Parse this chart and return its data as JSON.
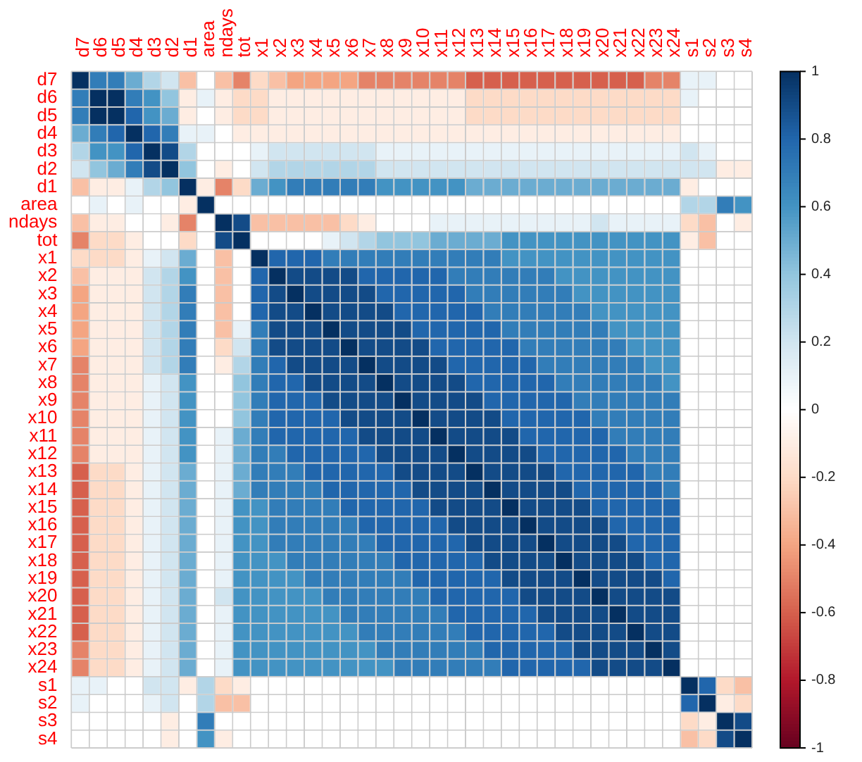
{
  "chart_data": {
    "type": "heatmap",
    "categories": [
      "d7",
      "d6",
      "d5",
      "d4",
      "d3",
      "d2",
      "d1",
      "area",
      "ndays",
      "tot",
      "x1",
      "x2",
      "x3",
      "x4",
      "x5",
      "x6",
      "x7",
      "x8",
      "x9",
      "x10",
      "x11",
      "x12",
      "x13",
      "x14",
      "x15",
      "x16",
      "x17",
      "x18",
      "x19",
      "x20",
      "x21",
      "x22",
      "x23",
      "x24",
      "s1",
      "s2",
      "s3",
      "s4"
    ],
    "y_categories": [
      "d7",
      "d6",
      "d5",
      "d4",
      "d3",
      "d2",
      "d1",
      "area",
      "ndays",
      "tot",
      "x1",
      "x2",
      "x3",
      "x4",
      "x5",
      "x6",
      "x7",
      "x8",
      "x9",
      "x10",
      "x11",
      "x12",
      "x13",
      "x14",
      "x15",
      "x16",
      "x17",
      "x18",
      "x19",
      "x20",
      "x21",
      "x22",
      "x23",
      "x24",
      "s1",
      "s2",
      "s3",
      "s4"
    ],
    "grid": true,
    "clim": [
      -1,
      1
    ],
    "cticks": [
      -1,
      -0.8,
      -0.6,
      -0.4,
      -0.2,
      0,
      0.2,
      0.4,
      0.6,
      0.8,
      1
    ],
    "cells": [
      [
        1,
        0.7,
        0.7,
        0.5,
        0.3,
        0.2,
        -0.3,
        0,
        -0.3,
        -0.5,
        -0.2,
        -0.3,
        -0.4,
        -0.4,
        -0.4,
        -0.4,
        -0.5,
        -0.5,
        -0.5,
        -0.5,
        -0.5,
        -0.5,
        -0.6,
        -0.6,
        -0.6,
        -0.6,
        -0.6,
        -0.6,
        -0.6,
        -0.6,
        -0.6,
        -0.6,
        -0.5,
        -0.5,
        0.1,
        0.1,
        0,
        0
      ],
      [
        0.7,
        1,
        1,
        0.7,
        0.6,
        0.4,
        -0.1,
        0.1,
        -0.1,
        -0.2,
        -0.2,
        -0.1,
        -0.1,
        -0.1,
        -0.1,
        -0.1,
        -0.1,
        -0.1,
        -0.1,
        -0.1,
        -0.1,
        -0.1,
        -0.2,
        -0.2,
        -0.2,
        -0.2,
        -0.2,
        -0.2,
        -0.2,
        -0.2,
        -0.2,
        -0.2,
        -0.2,
        -0.2,
        0.1,
        0,
        0,
        0
      ],
      [
        0.7,
        1,
        1,
        0.8,
        0.6,
        0.5,
        -0.1,
        0,
        -0.1,
        -0.2,
        -0.2,
        -0.1,
        -0.1,
        -0.1,
        -0.1,
        -0.1,
        -0.1,
        -0.1,
        -0.1,
        -0.1,
        -0.1,
        -0.1,
        -0.2,
        -0.2,
        -0.2,
        -0.2,
        -0.2,
        -0.2,
        -0.2,
        -0.2,
        -0.2,
        -0.2,
        -0.2,
        -0.2,
        0,
        0,
        0,
        0
      ],
      [
        0.5,
        0.7,
        0.8,
        1,
        0.8,
        0.7,
        0.1,
        0.1,
        0,
        -0.1,
        -0.1,
        -0.1,
        -0.1,
        -0.1,
        -0.1,
        -0.1,
        -0.1,
        -0.1,
        -0.1,
        -0.1,
        -0.1,
        -0.1,
        -0.1,
        -0.1,
        -0.1,
        -0.1,
        -0.1,
        -0.1,
        -0.1,
        -0.1,
        -0.1,
        -0.1,
        -0.1,
        -0.1,
        0,
        0,
        0,
        0
      ],
      [
        0.3,
        0.6,
        0.6,
        0.8,
        1,
        0.9,
        0.3,
        0,
        0,
        0,
        0.1,
        0.2,
        0.2,
        0.2,
        0.2,
        0.2,
        0.2,
        0.1,
        0.1,
        0.1,
        0.1,
        0.1,
        0.1,
        0.1,
        0.1,
        0.1,
        0.1,
        0.1,
        0.1,
        0.1,
        0.1,
        0.1,
        0.1,
        0.1,
        0.2,
        0.1,
        0,
        0
      ],
      [
        0.2,
        0.4,
        0.5,
        0.7,
        0.9,
        1,
        0.4,
        0,
        -0.1,
        0,
        0.2,
        0.3,
        0.3,
        0.3,
        0.3,
        0.3,
        0.3,
        0.2,
        0.2,
        0.2,
        0.2,
        0.2,
        0.2,
        0.2,
        0.2,
        0.2,
        0.2,
        0.2,
        0.2,
        0.2,
        0.2,
        0.2,
        0.2,
        0.2,
        0.2,
        0.2,
        -0.1,
        -0.1
      ],
      [
        -0.3,
        -0.1,
        -0.1,
        0.1,
        0.3,
        0.4,
        1,
        -0.1,
        -0.5,
        -0.2,
        0.5,
        0.6,
        0.7,
        0.7,
        0.7,
        0.7,
        0.7,
        0.6,
        0.6,
        0.6,
        0.6,
        0.6,
        0.5,
        0.5,
        0.5,
        0.5,
        0.5,
        0.5,
        0.5,
        0.5,
        0.5,
        0.5,
        0.5,
        0.5,
        -0.1,
        0,
        0,
        0
      ],
      [
        0,
        0.1,
        0,
        0.1,
        0,
        0,
        -0.1,
        1,
        0,
        0,
        0,
        0,
        0,
        0,
        0,
        0,
        0,
        0,
        0,
        0,
        0,
        0,
        0,
        0,
        0,
        0,
        0,
        0,
        0,
        0,
        0,
        0,
        0,
        0,
        0.3,
        0.3,
        0.7,
        0.6
      ],
      [
        -0.3,
        -0.1,
        -0.1,
        0,
        0,
        -0.1,
        -0.5,
        0,
        1,
        0.9,
        -0.3,
        -0.3,
        -0.3,
        -0.3,
        -0.3,
        -0.2,
        -0.1,
        0,
        0,
        0,
        0.1,
        0.1,
        0.1,
        0.1,
        0.1,
        0.1,
        0.1,
        0.1,
        0.1,
        0.2,
        0.1,
        0.1,
        0.1,
        0.1,
        -0.2,
        -0.3,
        0,
        -0.1
      ],
      [
        -0.5,
        -0.2,
        -0.2,
        -0.1,
        0,
        0,
        -0.2,
        0,
        0.9,
        1,
        0,
        0,
        0,
        0,
        0.1,
        0.2,
        0.3,
        0.4,
        0.4,
        0.4,
        0.5,
        0.5,
        0.5,
        0.5,
        0.6,
        0.6,
        0.6,
        0.6,
        0.6,
        0.6,
        0.6,
        0.6,
        0.6,
        0.6,
        -0.1,
        -0.3,
        0,
        0
      ],
      [
        -0.2,
        -0.2,
        -0.2,
        -0.1,
        0.1,
        0.2,
        0.5,
        0,
        -0.3,
        0,
        1,
        0.8,
        0.8,
        0.8,
        0.7,
        0.7,
        0.7,
        0.7,
        0.7,
        0.7,
        0.7,
        0.7,
        0.7,
        0.7,
        0.6,
        0.6,
        0.6,
        0.6,
        0.6,
        0.6,
        0.6,
        0.6,
        0.6,
        0.6,
        0,
        0,
        0,
        0
      ],
      [
        -0.3,
        -0.1,
        -0.1,
        -0.1,
        0.2,
        0.3,
        0.6,
        0,
        -0.3,
        0,
        0.8,
        1,
        0.9,
        0.9,
        0.9,
        0.9,
        0.8,
        0.8,
        0.8,
        0.8,
        0.8,
        0.7,
        0.7,
        0.7,
        0.7,
        0.7,
        0.7,
        0.6,
        0.6,
        0.6,
        0.6,
        0.6,
        0.6,
        0.6,
        0,
        0,
        0,
        0
      ],
      [
        -0.4,
        -0.1,
        -0.1,
        -0.1,
        0.2,
        0.3,
        0.7,
        0,
        -0.3,
        0,
        0.8,
        0.9,
        1,
        0.9,
        0.9,
        0.9,
        0.9,
        0.8,
        0.8,
        0.8,
        0.8,
        0.8,
        0.7,
        0.7,
        0.7,
        0.7,
        0.7,
        0.7,
        0.6,
        0.6,
        0.6,
        0.6,
        0.6,
        0.6,
        0,
        0,
        0,
        0
      ],
      [
        -0.4,
        -0.1,
        -0.1,
        -0.1,
        0.2,
        0.3,
        0.7,
        0,
        -0.3,
        0,
        0.8,
        0.9,
        0.9,
        1,
        0.9,
        0.9,
        0.9,
        0.9,
        0.8,
        0.8,
        0.8,
        0.8,
        0.8,
        0.7,
        0.7,
        0.7,
        0.7,
        0.7,
        0.7,
        0.6,
        0.6,
        0.6,
        0.6,
        0.6,
        0,
        0,
        0,
        0
      ],
      [
        -0.4,
        -0.1,
        -0.1,
        -0.1,
        0.2,
        0.3,
        0.7,
        0,
        -0.3,
        0.1,
        0.7,
        0.9,
        0.9,
        0.9,
        1,
        0.9,
        0.9,
        0.9,
        0.9,
        0.8,
        0.8,
        0.8,
        0.8,
        0.8,
        0.7,
        0.7,
        0.7,
        0.7,
        0.7,
        0.7,
        0.6,
        0.6,
        0.6,
        0.6,
        0,
        0,
        0,
        0
      ],
      [
        -0.4,
        -0.1,
        -0.1,
        -0.1,
        0.2,
        0.3,
        0.7,
        0,
        -0.2,
        0.2,
        0.7,
        0.9,
        0.9,
        0.9,
        0.9,
        1,
        0.9,
        0.9,
        0.9,
        0.9,
        0.8,
        0.8,
        0.8,
        0.8,
        0.8,
        0.7,
        0.7,
        0.7,
        0.7,
        0.7,
        0.7,
        0.6,
        0.6,
        0.6,
        0,
        0,
        0,
        0
      ],
      [
        -0.5,
        -0.1,
        -0.1,
        -0.1,
        0.2,
        0.3,
        0.7,
        0,
        -0.1,
        0.3,
        0.7,
        0.8,
        0.9,
        0.9,
        0.9,
        0.9,
        1,
        0.9,
        0.9,
        0.9,
        0.9,
        0.8,
        0.8,
        0.8,
        0.8,
        0.8,
        0.7,
        0.7,
        0.7,
        0.7,
        0.7,
        0.7,
        0.6,
        0.6,
        0,
        0,
        0,
        0
      ],
      [
        -0.5,
        -0.1,
        -0.1,
        -0.1,
        0.1,
        0.2,
        0.6,
        0,
        0,
        0.4,
        0.7,
        0.8,
        0.8,
        0.9,
        0.9,
        0.9,
        0.9,
        1,
        0.9,
        0.9,
        0.9,
        0.9,
        0.8,
        0.8,
        0.8,
        0.8,
        0.8,
        0.7,
        0.7,
        0.7,
        0.7,
        0.7,
        0.7,
        0.6,
        0,
        0,
        0,
        0
      ],
      [
        -0.5,
        -0.1,
        -0.1,
        -0.1,
        0.1,
        0.2,
        0.6,
        0,
        0,
        0.4,
        0.7,
        0.8,
        0.8,
        0.8,
        0.9,
        0.9,
        0.9,
        0.9,
        1,
        0.9,
        0.9,
        0.9,
        0.9,
        0.8,
        0.8,
        0.8,
        0.8,
        0.8,
        0.7,
        0.7,
        0.7,
        0.7,
        0.7,
        0.7,
        0,
        0,
        0,
        0
      ],
      [
        -0.5,
        -0.1,
        -0.1,
        -0.1,
        0.1,
        0.2,
        0.6,
        0,
        0,
        0.4,
        0.7,
        0.8,
        0.8,
        0.8,
        0.8,
        0.9,
        0.9,
        0.9,
        0.9,
        1,
        0.9,
        0.9,
        0.9,
        0.9,
        0.8,
        0.8,
        0.8,
        0.8,
        0.8,
        0.7,
        0.7,
        0.7,
        0.7,
        0.7,
        0,
        0,
        0,
        0
      ],
      [
        -0.5,
        -0.1,
        -0.1,
        -0.1,
        0.1,
        0.2,
        0.6,
        0,
        0.1,
        0.5,
        0.7,
        0.8,
        0.8,
        0.8,
        0.8,
        0.8,
        0.9,
        0.9,
        0.9,
        0.9,
        1,
        0.9,
        0.9,
        0.9,
        0.9,
        0.8,
        0.8,
        0.8,
        0.8,
        0.8,
        0.7,
        0.7,
        0.7,
        0.7,
        0,
        0,
        0,
        0
      ],
      [
        -0.5,
        -0.1,
        -0.1,
        -0.1,
        0.1,
        0.2,
        0.6,
        0,
        0.1,
        0.5,
        0.7,
        0.7,
        0.8,
        0.8,
        0.8,
        0.8,
        0.8,
        0.9,
        0.9,
        0.9,
        0.9,
        1,
        0.9,
        0.9,
        0.9,
        0.9,
        0.8,
        0.8,
        0.8,
        0.8,
        0.8,
        0.7,
        0.7,
        0.7,
        0,
        0,
        0,
        0
      ],
      [
        -0.6,
        -0.2,
        -0.2,
        -0.1,
        0.1,
        0.2,
        0.5,
        0,
        0.1,
        0.5,
        0.7,
        0.7,
        0.7,
        0.8,
        0.8,
        0.8,
        0.8,
        0.8,
        0.9,
        0.9,
        0.9,
        0.9,
        1,
        0.9,
        0.9,
        0.9,
        0.9,
        0.8,
        0.8,
        0.8,
        0.8,
        0.8,
        0.7,
        0.7,
        0,
        0,
        0,
        0
      ],
      [
        -0.6,
        -0.2,
        -0.2,
        -0.1,
        0.1,
        0.2,
        0.5,
        0,
        0.1,
        0.5,
        0.7,
        0.7,
        0.7,
        0.7,
        0.8,
        0.8,
        0.8,
        0.8,
        0.8,
        0.9,
        0.9,
        0.9,
        0.9,
        1,
        0.9,
        0.9,
        0.9,
        0.9,
        0.8,
        0.8,
        0.8,
        0.8,
        0.8,
        0.7,
        0,
        0,
        0,
        0
      ],
      [
        -0.6,
        -0.2,
        -0.2,
        -0.1,
        0.1,
        0.2,
        0.5,
        0,
        0.1,
        0.6,
        0.6,
        0.7,
        0.7,
        0.7,
        0.7,
        0.8,
        0.8,
        0.8,
        0.8,
        0.8,
        0.9,
        0.9,
        0.9,
        0.9,
        1,
        0.9,
        0.9,
        0.9,
        0.9,
        0.8,
        0.8,
        0.8,
        0.8,
        0.8,
        0,
        0,
        0,
        0
      ],
      [
        -0.6,
        -0.2,
        -0.2,
        -0.1,
        0.1,
        0.2,
        0.5,
        0,
        0.1,
        0.6,
        0.6,
        0.7,
        0.7,
        0.7,
        0.7,
        0.7,
        0.8,
        0.8,
        0.8,
        0.8,
        0.8,
        0.9,
        0.9,
        0.9,
        0.9,
        1,
        0.9,
        0.9,
        0.9,
        0.9,
        0.8,
        0.8,
        0.8,
        0.8,
        0,
        0,
        0,
        0
      ],
      [
        -0.6,
        -0.2,
        -0.2,
        -0.1,
        0.1,
        0.2,
        0.5,
        0,
        0.1,
        0.6,
        0.6,
        0.7,
        0.7,
        0.7,
        0.7,
        0.7,
        0.7,
        0.8,
        0.8,
        0.8,
        0.8,
        0.8,
        0.9,
        0.9,
        0.9,
        0.9,
        1,
        0.9,
        0.9,
        0.9,
        0.9,
        0.8,
        0.8,
        0.8,
        0,
        0,
        0,
        0
      ],
      [
        -0.6,
        -0.2,
        -0.2,
        -0.1,
        0.1,
        0.2,
        0.5,
        0,
        0.1,
        0.6,
        0.6,
        0.6,
        0.7,
        0.7,
        0.7,
        0.7,
        0.7,
        0.7,
        0.8,
        0.8,
        0.8,
        0.8,
        0.8,
        0.9,
        0.9,
        0.9,
        0.9,
        1,
        0.9,
        0.9,
        0.9,
        0.9,
        0.8,
        0.8,
        0,
        0,
        0,
        0
      ],
      [
        -0.6,
        -0.2,
        -0.2,
        -0.1,
        0.1,
        0.2,
        0.5,
        0,
        0.1,
        0.6,
        0.6,
        0.6,
        0.6,
        0.7,
        0.7,
        0.7,
        0.7,
        0.7,
        0.7,
        0.8,
        0.8,
        0.8,
        0.8,
        0.8,
        0.9,
        0.9,
        0.9,
        0.9,
        1,
        0.9,
        0.9,
        0.9,
        0.9,
        0.8,
        0,
        0,
        0,
        0
      ],
      [
        -0.6,
        -0.2,
        -0.2,
        -0.1,
        0.1,
        0.2,
        0.5,
        0,
        0.2,
        0.6,
        0.6,
        0.6,
        0.6,
        0.6,
        0.7,
        0.7,
        0.7,
        0.7,
        0.7,
        0.7,
        0.8,
        0.8,
        0.8,
        0.8,
        0.8,
        0.9,
        0.9,
        0.9,
        0.9,
        1,
        0.9,
        0.9,
        0.9,
        0.9,
        0,
        0,
        0,
        0
      ],
      [
        -0.6,
        -0.2,
        -0.2,
        -0.1,
        0.1,
        0.2,
        0.5,
        0,
        0.1,
        0.6,
        0.6,
        0.6,
        0.6,
        0.6,
        0.6,
        0.7,
        0.7,
        0.7,
        0.7,
        0.7,
        0.7,
        0.8,
        0.8,
        0.8,
        0.8,
        0.8,
        0.9,
        0.9,
        0.9,
        0.9,
        1,
        0.9,
        0.9,
        0.9,
        0,
        0,
        0,
        0
      ],
      [
        -0.6,
        -0.2,
        -0.2,
        -0.1,
        0.1,
        0.2,
        0.5,
        0,
        0.1,
        0.6,
        0.6,
        0.6,
        0.6,
        0.6,
        0.6,
        0.6,
        0.7,
        0.7,
        0.7,
        0.7,
        0.7,
        0.7,
        0.8,
        0.8,
        0.8,
        0.8,
        0.8,
        0.9,
        0.9,
        0.9,
        0.9,
        1,
        0.9,
        0.9,
        0,
        0,
        0,
        0
      ],
      [
        -0.5,
        -0.2,
        -0.2,
        -0.1,
        0.1,
        0.2,
        0.5,
        0,
        0.1,
        0.6,
        0.6,
        0.6,
        0.6,
        0.6,
        0.6,
        0.6,
        0.6,
        0.7,
        0.7,
        0.7,
        0.7,
        0.7,
        0.7,
        0.8,
        0.8,
        0.8,
        0.8,
        0.8,
        0.9,
        0.9,
        0.9,
        0.9,
        1,
        0.9,
        0,
        0,
        0,
        0
      ],
      [
        -0.5,
        -0.2,
        -0.2,
        -0.1,
        0.1,
        0.2,
        0.5,
        0,
        0.1,
        0.6,
        0.6,
        0.6,
        0.6,
        0.6,
        0.6,
        0.6,
        0.6,
        0.6,
        0.7,
        0.7,
        0.7,
        0.7,
        0.7,
        0.7,
        0.8,
        0.8,
        0.8,
        0.8,
        0.8,
        0.9,
        0.9,
        0.9,
        0.9,
        1,
        0,
        0,
        0,
        0
      ],
      [
        0.1,
        0.1,
        0,
        0,
        0.2,
        0.2,
        -0.1,
        0.3,
        -0.2,
        -0.1,
        0,
        0,
        0,
        0,
        0,
        0,
        0,
        0,
        0,
        0,
        0,
        0,
        0,
        0,
        0,
        0,
        0,
        0,
        0,
        0,
        0,
        0,
        0,
        0,
        1,
        0.8,
        -0.2,
        -0.3
      ],
      [
        0.1,
        0,
        0,
        0,
        0.1,
        0.2,
        0,
        0.3,
        -0.3,
        -0.3,
        0,
        0,
        0,
        0,
        0,
        0,
        0,
        0,
        0,
        0,
        0,
        0,
        0,
        0,
        0,
        0,
        0,
        0,
        0,
        0,
        0,
        0,
        0,
        0,
        0.8,
        1,
        -0.1,
        -0.2
      ],
      [
        0,
        0,
        0,
        0,
        0,
        -0.1,
        0,
        0.7,
        0,
        0,
        0,
        0,
        0,
        0,
        0,
        0,
        0,
        0,
        0,
        0,
        0,
        0,
        0,
        0,
        0,
        0,
        0,
        0,
        0,
        0,
        0,
        0,
        0,
        0,
        -0.2,
        -0.1,
        1,
        0.9
      ],
      [
        0,
        0,
        0,
        0,
        0,
        -0.1,
        0,
        0.6,
        -0.1,
        0,
        0,
        0,
        0,
        0,
        0,
        0,
        0,
        0,
        0,
        0,
        0,
        0,
        0,
        0,
        0,
        0,
        0,
        0,
        0,
        0,
        0,
        0,
        0,
        0,
        -0.3,
        -0.2,
        0.9,
        1
      ]
    ]
  }
}
